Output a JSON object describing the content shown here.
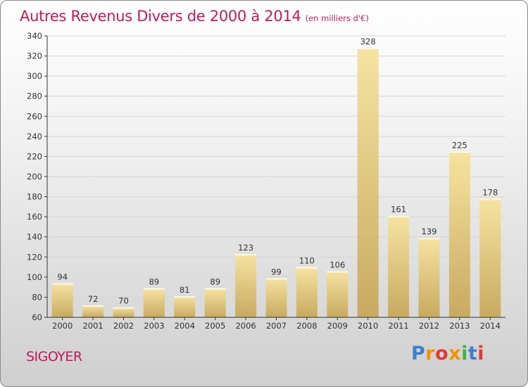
{
  "header": {
    "title": "Autres Revenus Divers de 2000 à 2014",
    "unit": "(en milliers d'€)"
  },
  "footer": {
    "commune": "SIGOYER",
    "brand": "Proxiti",
    "brand_colors": [
      "#3b7fd4",
      "#f29400",
      "#e53935",
      "#f29400",
      "#3bb54a",
      "#3b7fd4",
      "#e53935"
    ]
  },
  "colors": {
    "title": "#c2185b",
    "bar_light": "#f6e3a1",
    "bar_dark": "#c7aa5f",
    "axis": "#333333"
  },
  "chart_data": {
    "type": "bar",
    "title": "Autres Revenus Divers de 2000 à 2014",
    "xlabel": "",
    "ylabel": "",
    "categories": [
      "2000",
      "2001",
      "2002",
      "2003",
      "2004",
      "2005",
      "2006",
      "2007",
      "2008",
      "2009",
      "2010",
      "2011",
      "2012",
      "2013",
      "2014"
    ],
    "values": [
      94,
      72,
      70,
      89,
      81,
      89,
      123,
      99,
      110,
      106,
      328,
      161,
      139,
      225,
      178
    ],
    "ylim": [
      60,
      340
    ],
    "yticks": [
      60,
      80,
      100,
      120,
      140,
      160,
      180,
      200,
      220,
      240,
      260,
      280,
      300,
      320,
      340
    ],
    "grid": true,
    "legend": "none"
  }
}
